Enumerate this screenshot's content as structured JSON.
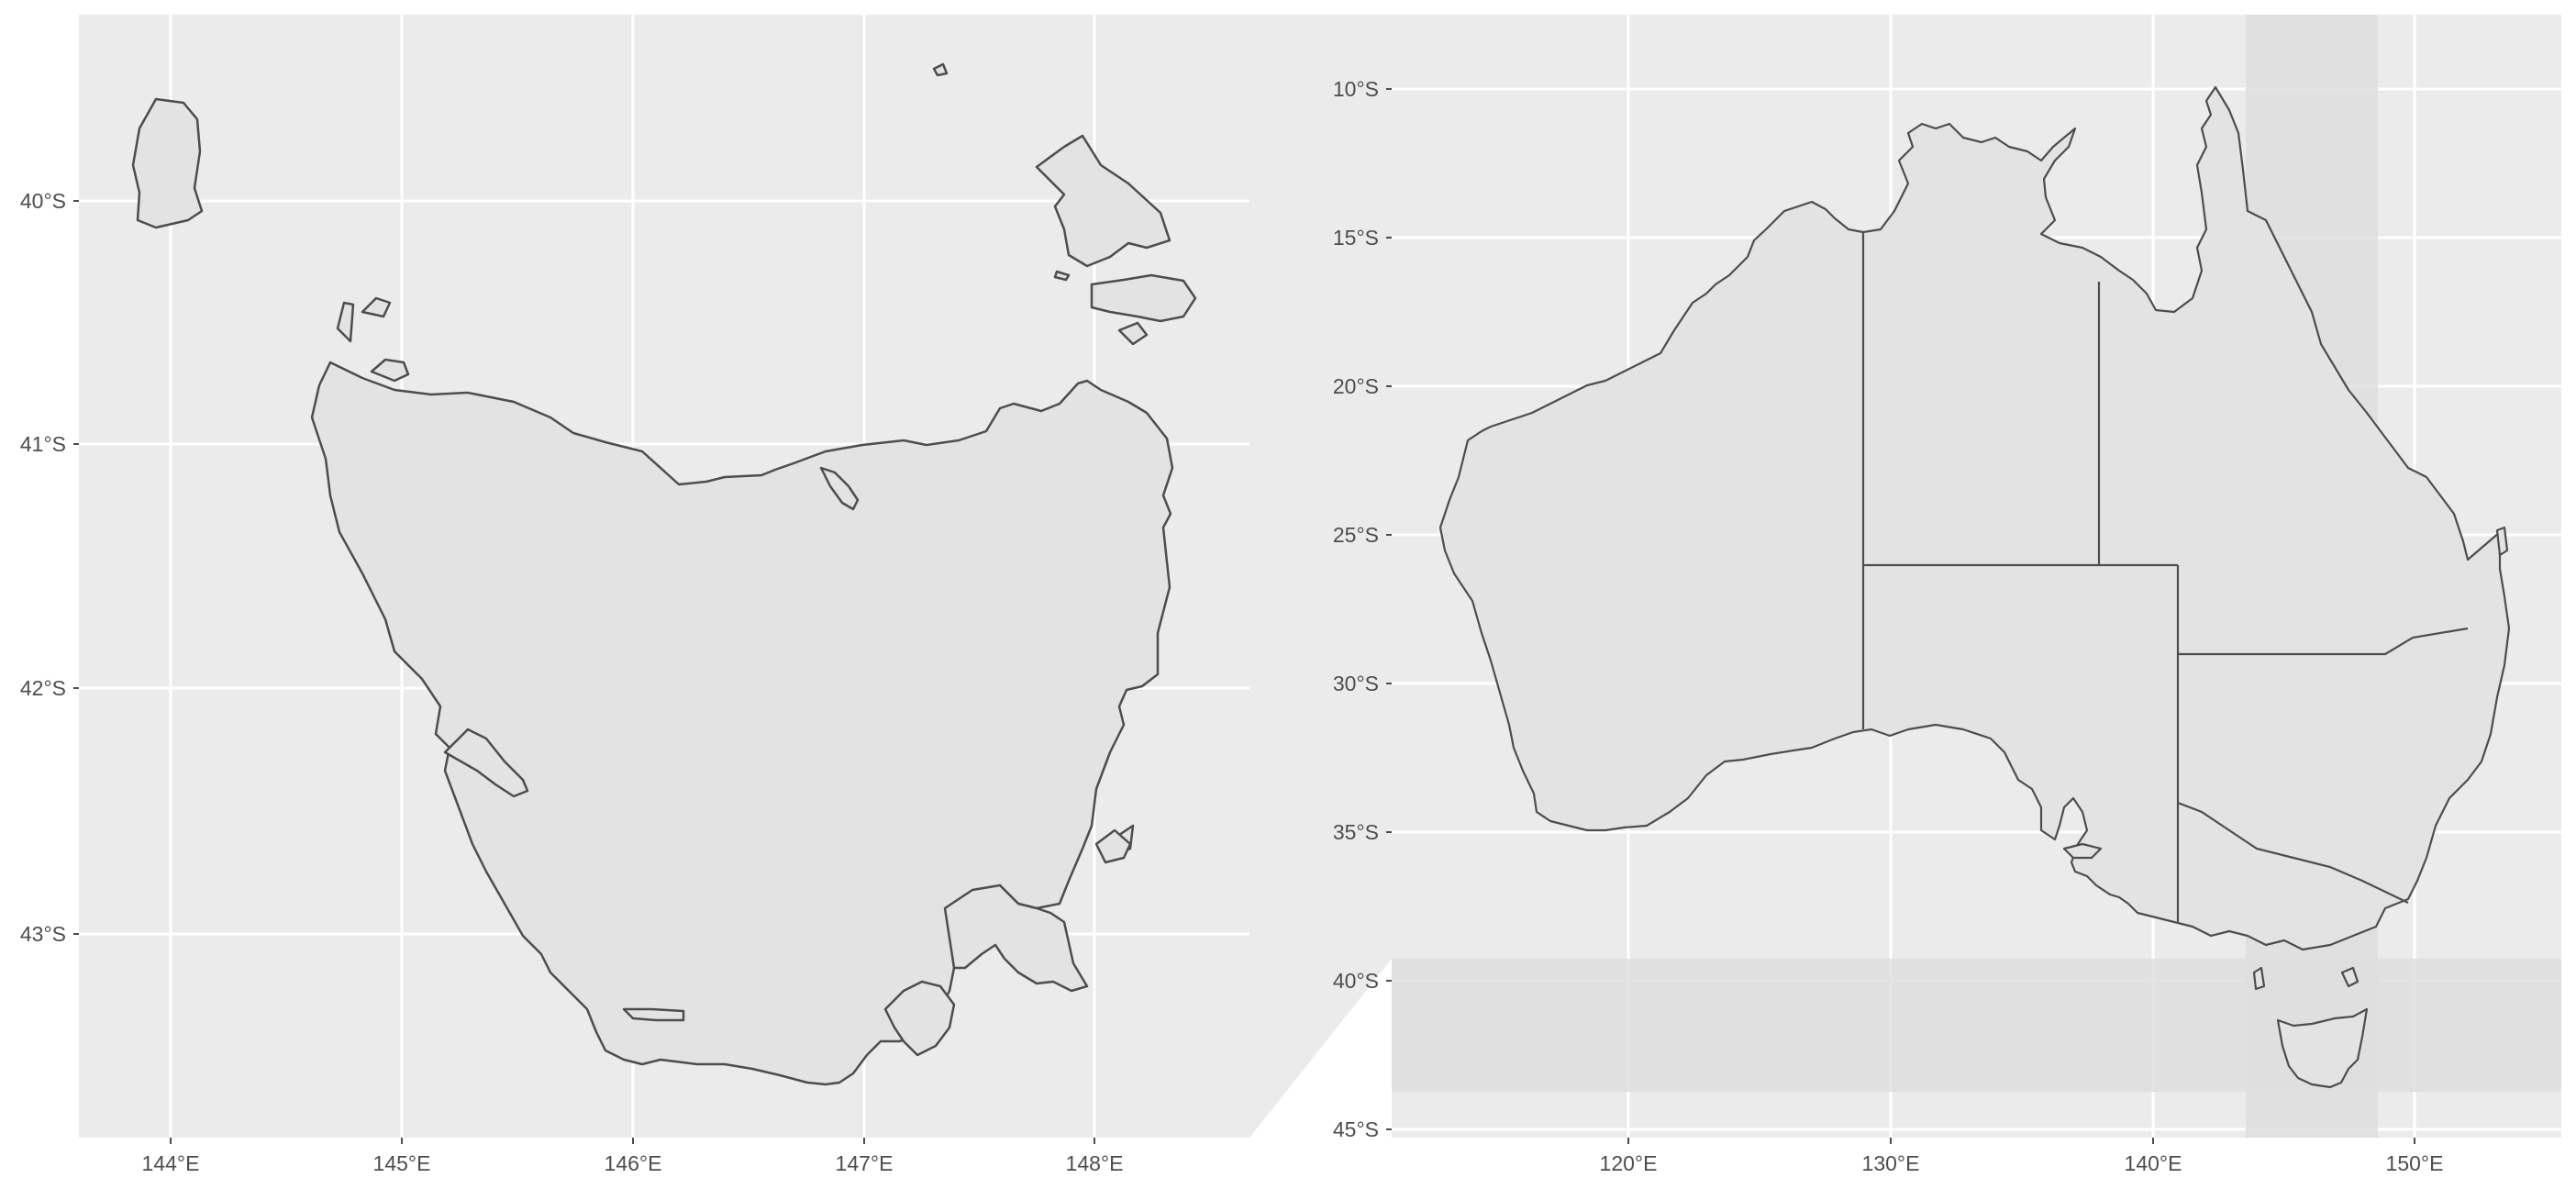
{
  "inset_map": {
    "x_tick_labels": [
      "144°E",
      "145°E",
      "146°E",
      "147°E",
      "148°E"
    ],
    "y_tick_labels": [
      "40°S",
      "41°S",
      "42°S",
      "43°S"
    ],
    "region": "Tasmania"
  },
  "main_map": {
    "x_tick_labels": [
      "120°E",
      "130°E",
      "140°E",
      "150°E"
    ],
    "y_tick_labels": [
      "10°S",
      "15°S",
      "20°S",
      "25°S",
      "30°S",
      "35°S",
      "40°S",
      "45°S"
    ],
    "region": "Australia"
  },
  "colors": {
    "panel_background": "#ebebeb",
    "land_fill": "#e3e3e3",
    "outline": "#4d4d4d",
    "grid": "#ffffff",
    "highlight": "#dfdfdf"
  }
}
